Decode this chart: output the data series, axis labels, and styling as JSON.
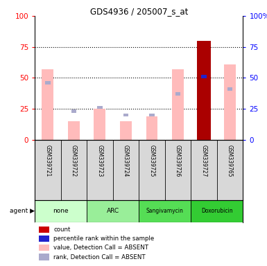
{
  "title": "GDS4936 / 205007_s_at",
  "samples": [
    "GSM339721",
    "GSM339722",
    "GSM339723",
    "GSM339724",
    "GSM339725",
    "GSM339726",
    "GSM339727",
    "GSM339765"
  ],
  "agent_groups": [
    {
      "label": "none",
      "indices": [
        0,
        1
      ],
      "color": "#ccffcc"
    },
    {
      "label": "ARC",
      "indices": [
        2,
        3
      ],
      "color": "#99ee99"
    },
    {
      "label": "Sangivamycin",
      "indices": [
        4,
        5
      ],
      "color": "#55dd55"
    },
    {
      "label": "Doxorubicin",
      "indices": [
        6,
        7
      ],
      "color": "#33cc33"
    }
  ],
  "pink_bar_values": [
    57,
    15,
    25,
    15,
    19,
    57,
    80,
    61
  ],
  "blue_sq_values": [
    46,
    23,
    26,
    20,
    20,
    37,
    51,
    41
  ],
  "red_bar_index": 6,
  "red_bar_value": 80,
  "yticks": [
    0,
    25,
    50,
    75,
    100
  ],
  "color_pink": "#ffbbbb",
  "color_blue_sq": "#aaaacc",
  "color_red": "#cc0000",
  "color_dark_red": "#aa0000",
  "color_blue_dot": "#2222cc",
  "bg_color": "#d8d8d8",
  "legend_items": [
    {
      "color": "#cc0000",
      "label": "count"
    },
    {
      "color": "#2222cc",
      "label": "percentile rank within the sample"
    },
    {
      "color": "#ffbbbb",
      "label": "value, Detection Call = ABSENT"
    },
    {
      "color": "#aaaacc",
      "label": "rank, Detection Call = ABSENT"
    }
  ]
}
